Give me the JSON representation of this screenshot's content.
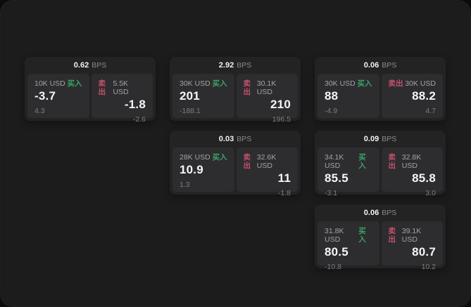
{
  "labels": {
    "unit": "BPS",
    "buy": "买入",
    "sell": "卖出"
  },
  "colors": {
    "page_bg": "#0b0b0b",
    "window_bg": "#1c1c1d",
    "card_bg": "#232324",
    "panel_bg": "#2d2d2f",
    "buy_green": "#3aa368",
    "sell_red": "#c4516b",
    "text_primary": "#f5f5f5",
    "text_muted": "#8b8b8b"
  },
  "cards": [
    {
      "spread": "0.62",
      "buy": {
        "amount": "10K USD",
        "price": "-3.7",
        "change": "4.3"
      },
      "sell": {
        "amount": "5.5K USD",
        "price": "-1.8",
        "change": "-2.6"
      }
    },
    {
      "spread": "2.92",
      "buy": {
        "amount": "30K USD",
        "price": "201",
        "change": "-188.1"
      },
      "sell": {
        "amount": "30.1K USD",
        "price": "210",
        "change": "196.5"
      }
    },
    {
      "spread": "0.06",
      "buy": {
        "amount": "30K USD",
        "price": "88",
        "change": "-4.9"
      },
      "sell": {
        "amount": "30K USD",
        "price": "88.2",
        "change": "4.7"
      }
    },
    {
      "spread": "0.03",
      "buy": {
        "amount": "28K USD",
        "price": "10.9",
        "change": "1.3"
      },
      "sell": {
        "amount": "32.6K USD",
        "price": "11",
        "change": "-1.8"
      }
    },
    {
      "spread": "0.09",
      "buy": {
        "amount": "34.1K USD",
        "price": "85.5",
        "change": "-3.1"
      },
      "sell": {
        "amount": "32.8K USD",
        "price": "85.8",
        "change": "3.0"
      }
    },
    {
      "spread": "0.06",
      "buy": {
        "amount": "31.8K USD",
        "price": "80.5",
        "change": "-10.8"
      },
      "sell": {
        "amount": "39.1K USD",
        "price": "80.7",
        "change": "10.2"
      }
    }
  ]
}
